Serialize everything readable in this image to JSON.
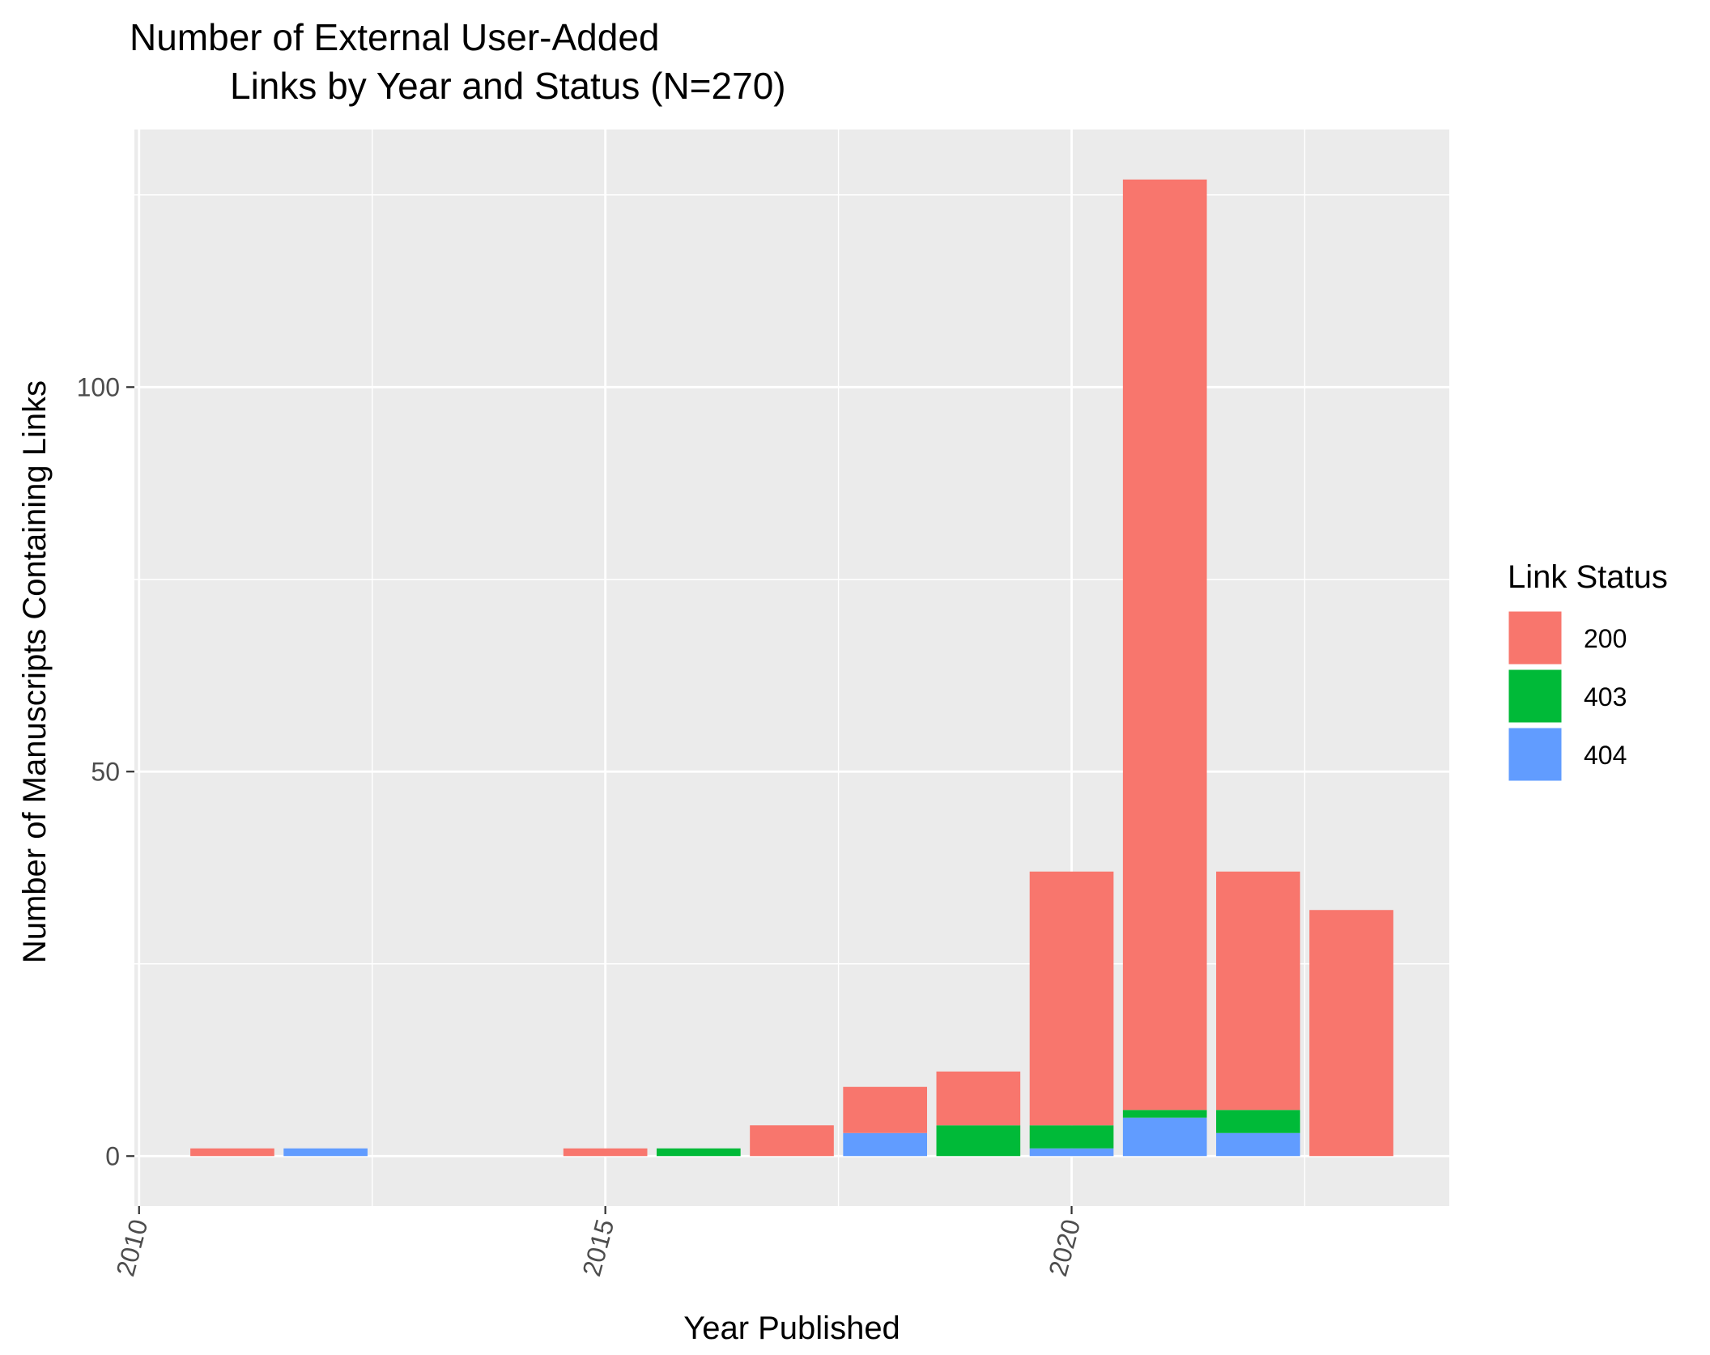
{
  "chart_data": {
    "type": "bar",
    "stacked": true,
    "title_lines": [
      "Number of External User-Added",
      "Links by Year and Status (N=270)"
    ],
    "xlabel": "Year Published",
    "ylabel": "Number of Manuscripts Containing Links",
    "x_ticks": [
      "2010",
      "2015",
      "2020"
    ],
    "y_ticks": [
      "0",
      "50",
      "100"
    ],
    "xlim": [
      2009.95,
      2024.05
    ],
    "ylim": [
      -6.5,
      133.5
    ],
    "grid": true,
    "legend": {
      "title": "Link Status",
      "position": "right",
      "entries": [
        {
          "label": "200",
          "color": "#F8766D"
        },
        {
          "label": "403",
          "color": "#00BA38"
        },
        {
          "label": "404",
          "color": "#619CFF"
        }
      ]
    },
    "years": [
      2011,
      2012,
      2015,
      2016,
      2017,
      2018,
      2019,
      2020,
      2021,
      2022,
      2023
    ],
    "series": [
      {
        "name": "404",
        "color": "#619CFF",
        "values": [
          0,
          1,
          0,
          0,
          0,
          3,
          0,
          1,
          5,
          3,
          0
        ]
      },
      {
        "name": "403",
        "color": "#00BA38",
        "values": [
          0,
          0,
          0,
          1,
          0,
          0,
          4,
          3,
          1,
          3,
          0
        ]
      },
      {
        "name": "200",
        "color": "#F8766D",
        "values": [
          1,
          0,
          1,
          0,
          4,
          6,
          7,
          33,
          121,
          31,
          32
        ]
      }
    ]
  }
}
